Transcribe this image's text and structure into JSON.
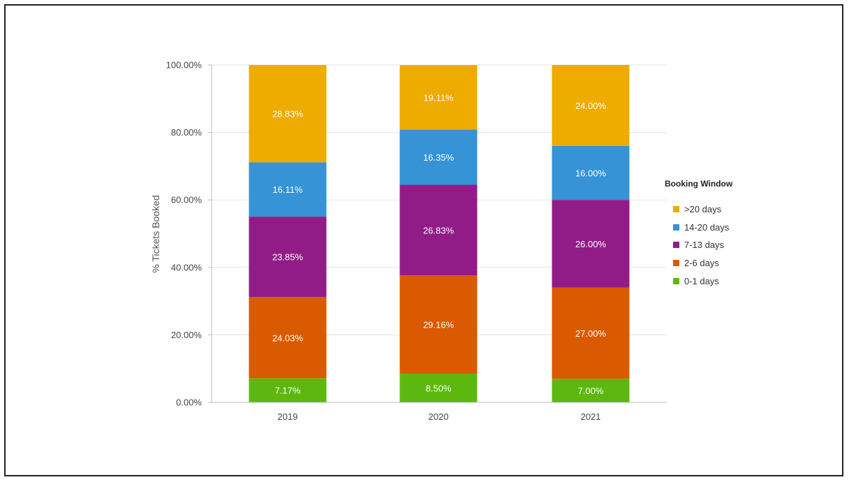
{
  "chart_data": {
    "type": "bar",
    "stacked": true,
    "categories": [
      "2019",
      "2020",
      "2021"
    ],
    "ylabel": "% Tickets Booked",
    "xlabel": "",
    "ylim": [
      0,
      100
    ],
    "yticks": [
      "0.00%",
      "20.00%",
      "40.00%",
      "60.00%",
      "80.00%",
      "100.00%"
    ],
    "grid": true,
    "legend": {
      "title": "Booking Window",
      "placement": "right",
      "order": [
        ">20 days",
        "14-20 days",
        "7-13 days",
        "2-6 days",
        "0-1 days"
      ]
    },
    "series": [
      {
        "name": "0-1 days",
        "color": "#5cb80f",
        "values": [
          7.17,
          8.5,
          7.0
        ],
        "labels": [
          "7.17%",
          "8.50%",
          "7.00%"
        ]
      },
      {
        "name": "2-6 days",
        "color": "#d95a00",
        "values": [
          24.03,
          29.16,
          27.0
        ],
        "labels": [
          "24.03%",
          "29.16%",
          "27.00%"
        ]
      },
      {
        "name": "7-13 days",
        "color": "#921c87",
        "values": [
          23.85,
          26.83,
          26.0
        ],
        "labels": [
          "23.85%",
          "26.83%",
          "26.00%"
        ]
      },
      {
        "name": "14-20 days",
        "color": "#3593d6",
        "values": [
          16.11,
          16.35,
          16.0
        ],
        "labels": [
          "16.11%",
          "16.35%",
          "16.00%"
        ]
      },
      {
        "name": ">20 days",
        "color": "#eeab00",
        "values": [
          28.83,
          19.11,
          24.0
        ],
        "labels": [
          "28.83%",
          "19.11%",
          "24.00%"
        ]
      }
    ]
  }
}
